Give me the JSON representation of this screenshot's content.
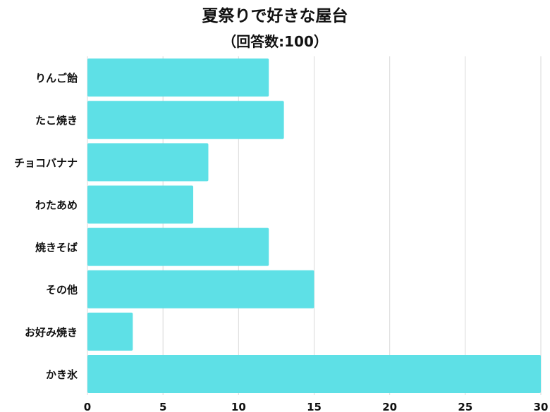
{
  "colors": {
    "bar": "#5ee0e6",
    "grid": "#d9d9d9",
    "text": "#111111"
  },
  "chart_data": {
    "type": "bar",
    "orientation": "horizontal",
    "title": "夏祭りで好きな屋台",
    "subtitle": "（回答数:100）",
    "categories": [
      "りんご飴",
      "たこ焼き",
      "チョコバナナ",
      "わたあめ",
      "焼きそば",
      "その他",
      "お好み焼き",
      "かき氷"
    ],
    "values": [
      12,
      13,
      8,
      7,
      12,
      15,
      3,
      30
    ],
    "xlim": [
      0,
      30
    ],
    "xticks": [
      0,
      5,
      10,
      15,
      20,
      25,
      30
    ],
    "grid": "vertical",
    "legend": "none"
  }
}
